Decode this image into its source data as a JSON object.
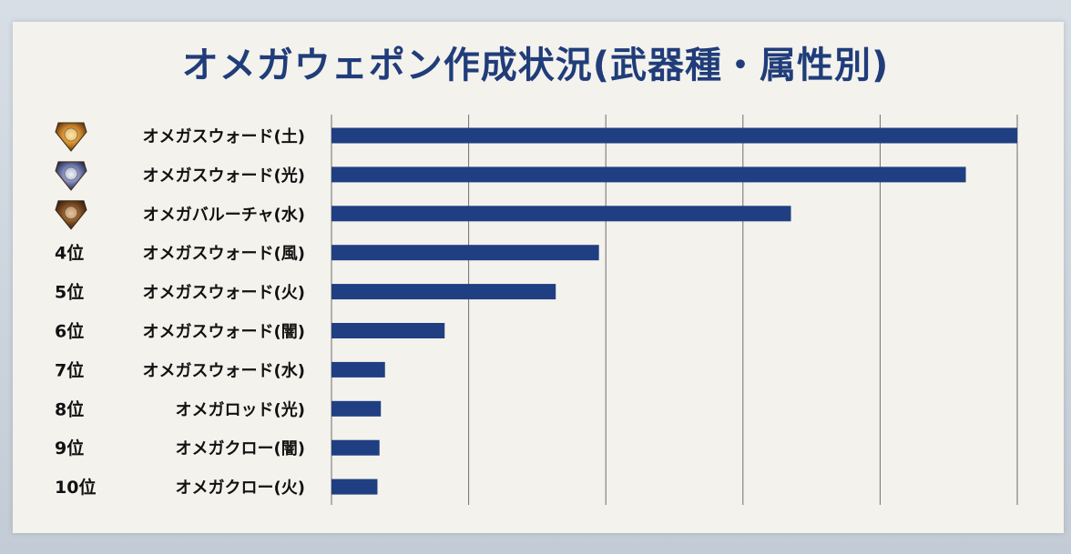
{
  "title": "オメガウェポン作成状況(武器種・属性別)",
  "colors": {
    "bar": "#203f82",
    "title": "#203d7a",
    "panel": "#f4f2ed"
  },
  "chart_data": {
    "type": "bar",
    "orientation": "horizontal",
    "title": "オメガウェポン作成状況(武器種・属性別)",
    "xlabel": "",
    "ylabel": "",
    "grid": true,
    "xlim": [
      0,
      100
    ],
    "x_tick_labels_shown": false,
    "categories": [
      {
        "rank": "",
        "rank_icon": "rank-1-medal-icon",
        "label": "オメガスウォード(土)",
        "value": 100
      },
      {
        "rank": "",
        "rank_icon": "rank-2-medal-icon",
        "label": "オメガスウォード(光)",
        "value": 92.5
      },
      {
        "rank": "",
        "rank_icon": "rank-3-medal-icon",
        "label": "オメガバルーチャ(水)",
        "value": 67
      },
      {
        "rank": "4位",
        "rank_icon": "",
        "label": "オメガスウォード(風)",
        "value": 39
      },
      {
        "rank": "5位",
        "rank_icon": "",
        "label": "オメガスウォード(火)",
        "value": 32.7
      },
      {
        "rank": "6位",
        "rank_icon": "",
        "label": "オメガスウォード(闇)",
        "value": 16.5
      },
      {
        "rank": "7位",
        "rank_icon": "",
        "label": "オメガスウォード(水)",
        "value": 7.8
      },
      {
        "rank": "8位",
        "rank_icon": "",
        "label": "オメガロッド(光)",
        "value": 7.2
      },
      {
        "rank": "9位",
        "rank_icon": "",
        "label": "オメガクロー(闇)",
        "value": 7.0
      },
      {
        "rank": "10位",
        "rank_icon": "",
        "label": "オメガクロー(火)",
        "value": 6.7
      }
    ]
  }
}
